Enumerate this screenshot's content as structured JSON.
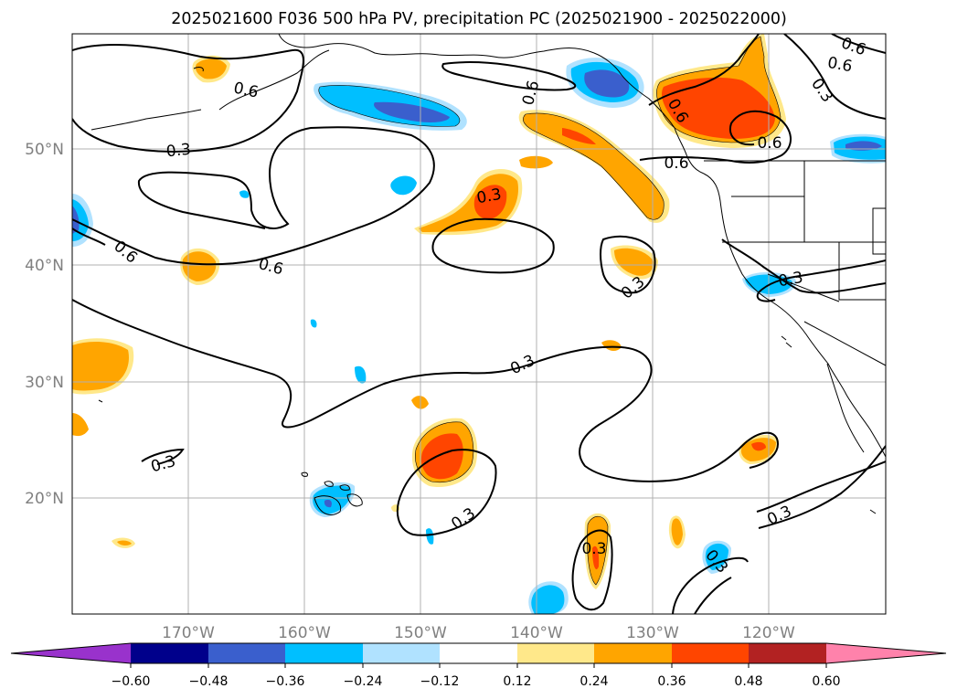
{
  "title": "2025021600 F036 500 hPa PV, precipitation PC (2025021900 - 2025022000)",
  "lat_labels": [
    "50°N",
    "40°N",
    "30°N",
    "20°N"
  ],
  "lon_labels": [
    "170°W",
    "160°W",
    "150°W",
    "140°W",
    "130°W",
    "120°W"
  ],
  "colorbar": {
    "ticks": [
      "−0.60",
      "−0.48",
      "−0.36",
      "−0.24",
      "−0.12",
      "0.12",
      "0.24",
      "0.36",
      "0.48",
      "0.60"
    ],
    "colors": [
      "#9932cc",
      "#00008b",
      "#3a5fcd",
      "#00bfff",
      "#b0e2ff",
      "#ffffff",
      "#ffe88a",
      "#ffa500",
      "#ff4500",
      "#b22222",
      "#ff82ab"
    ]
  },
  "contour_labels": [
    {
      "id": "lbl-1",
      "text": "0.6"
    },
    {
      "id": "lbl-2",
      "text": "0.3"
    },
    {
      "id": "lbl-3",
      "text": "0.6"
    },
    {
      "id": "lbl-4",
      "text": "0.6"
    },
    {
      "id": "lbl-5",
      "text": "0.3"
    },
    {
      "id": "lbl-6",
      "text": "0.6"
    },
    {
      "id": "lbl-7",
      "text": "0.6"
    },
    {
      "id": "lbl-8",
      "text": "0.6"
    },
    {
      "id": "lbl-9",
      "text": "0.3"
    },
    {
      "id": "lbl-10",
      "text": "0.6"
    },
    {
      "id": "lbl-11",
      "text": "0.6"
    },
    {
      "id": "lbl-12",
      "text": "0.3"
    },
    {
      "id": "lbl-13",
      "text": "0.3"
    },
    {
      "id": "lbl-14",
      "text": "0.3"
    },
    {
      "id": "lbl-15",
      "text": "0.3"
    },
    {
      "id": "lbl-16",
      "text": "0.3"
    },
    {
      "id": "lbl-17",
      "text": "0.3"
    },
    {
      "id": "lbl-18",
      "text": "0.3"
    },
    {
      "id": "lbl-19",
      "text": "0.6"
    },
    {
      "id": "lbl-20",
      "text": "0.3"
    }
  ]
}
